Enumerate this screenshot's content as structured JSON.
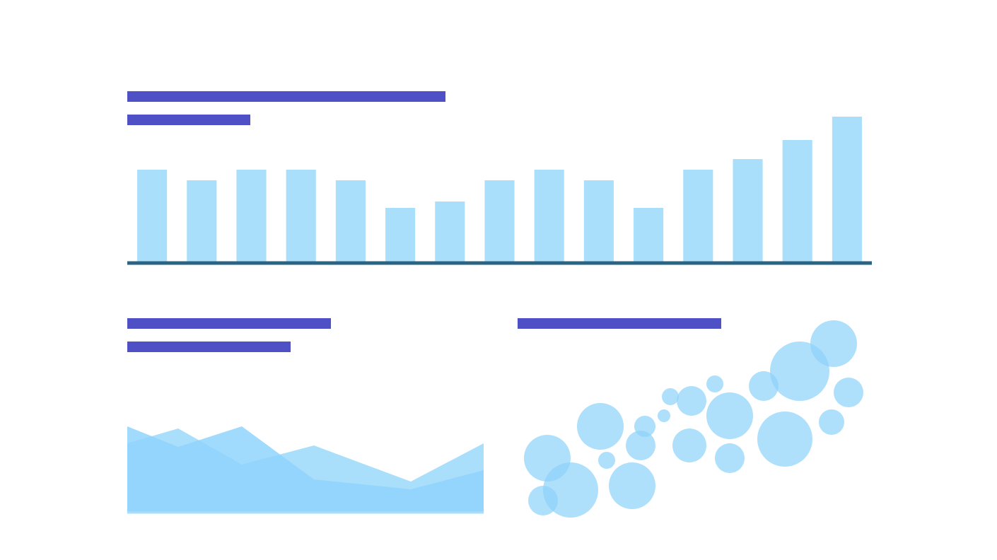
{
  "chart_data": [
    {
      "type": "bar",
      "color": "#aadffb",
      "ylim": [
        0,
        20.5
      ],
      "categories": [
        null,
        null,
        null,
        null,
        null,
        null,
        null,
        null,
        null,
        null,
        null,
        null,
        null,
        null,
        null
      ],
      "values": [
        13,
        11.5,
        13,
        13,
        11.5,
        7.6,
        8.5,
        11.5,
        13,
        11.5,
        7.6,
        13,
        14.5,
        17.2,
        20.5
      ]
    },
    {
      "type": "area",
      "xlim": [
        0,
        50.4
      ],
      "ylim": [
        0,
        14
      ],
      "x": [
        0,
        7.2,
        16.2,
        26.4,
        40.1,
        50.4
      ],
      "series": [
        {
          "color": "#aadffb",
          "values": [
            9.7,
            11.8,
            6.7,
            9.4,
            4.3,
            9.7
          ]
        },
        {
          "color": "#8fd3fd",
          "values": [
            12.1,
            9.2,
            12.1,
            4.6,
            3.2,
            5.9
          ]
        }
      ]
    },
    {
      "type": "scatter",
      "color": "#8fd3fa",
      "xlim": [
        0,
        50
      ],
      "ylim": [
        0,
        28.2
      ],
      "x": [
        4.2,
        7.5,
        3.6,
        11.7,
        12.6,
        16.2,
        17.4,
        18,
        20.7,
        21.6,
        24.3,
        24.6,
        27.9,
        30,
        30,
        34.8,
        37.8,
        39.9,
        44.4,
        44.7,
        46.8
      ],
      "values": [
        8.4,
        3.9,
        2.4,
        12.9,
        8.1,
        4.5,
        10.2,
        12.9,
        14.4,
        17.1,
        10.2,
        16.5,
        18.9,
        14.4,
        8.4,
        18.6,
        11.1,
        20.7,
        13.5,
        24.6,
        17.7
      ],
      "sizes": [
        3.3,
        3.9,
        2.1,
        3.3,
        1.2,
        3.3,
        2.1,
        1.5,
        0.9,
        1.2,
        2.4,
        2.1,
        1.2,
        3.3,
        2.1,
        2.1,
        3.9,
        4.2,
        1.8,
        3.3,
        2.1
      ]
    }
  ]
}
